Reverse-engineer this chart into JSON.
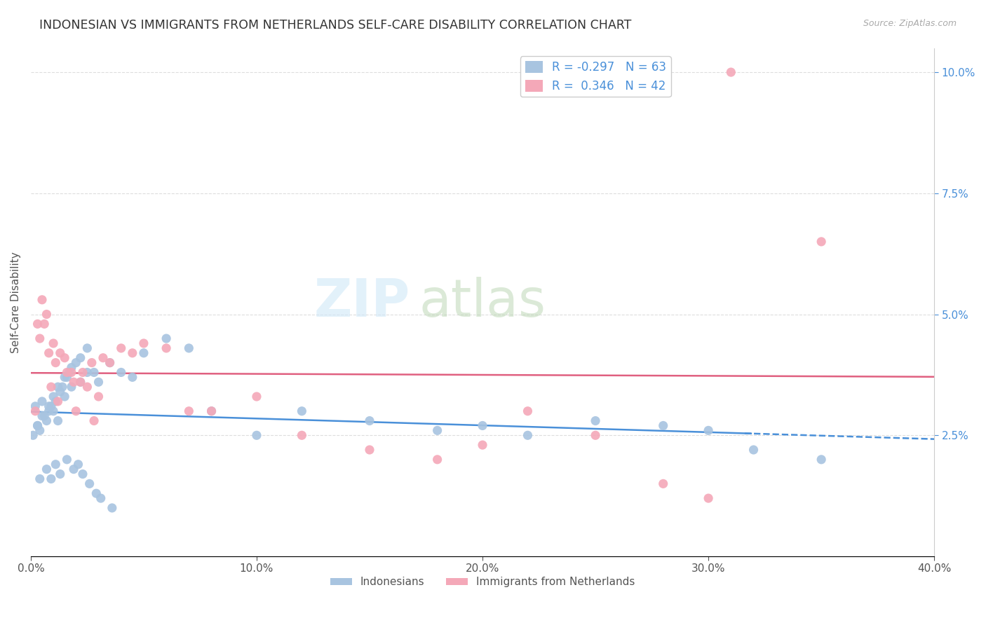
{
  "title": "INDONESIAN VS IMMIGRANTS FROM NETHERLANDS SELF-CARE DISABILITY CORRELATION CHART",
  "source": "Source: ZipAtlas.com",
  "ylabel": "Self-Care Disability",
  "xlim": [
    0.0,
    0.4
  ],
  "ylim": [
    0.0,
    0.105
  ],
  "xticks": [
    0.0,
    0.1,
    0.2,
    0.3,
    0.4
  ],
  "xticklabels": [
    "0.0%",
    "10.0%",
    "20.0%",
    "30.0%",
    "40.0%"
  ],
  "yticks_right": [
    0.025,
    0.05,
    0.075,
    0.1
  ],
  "yticklabels_right": [
    "2.5%",
    "5.0%",
    "7.5%",
    "10.0%"
  ],
  "legend_r_blue": "-0.297",
  "legend_n_blue": "63",
  "legend_r_pink": "0.346",
  "legend_n_pink": "42",
  "blue_color": "#a8c4e0",
  "pink_color": "#f4a8b8",
  "blue_line_color": "#4a90d9",
  "pink_line_color": "#e06080",
  "watermark_zip": "ZIP",
  "watermark_atlas": "atlas",
  "indonesian_x": [
    0.008,
    0.012,
    0.005,
    0.003,
    0.002,
    0.015,
    0.018,
    0.022,
    0.025,
    0.006,
    0.004,
    0.009,
    0.01,
    0.007,
    0.013,
    0.016,
    0.02,
    0.011,
    0.014,
    0.017,
    0.001,
    0.003,
    0.005,
    0.008,
    0.01,
    0.012,
    0.015,
    0.018,
    0.022,
    0.025,
    0.028,
    0.03,
    0.035,
    0.04,
    0.045,
    0.05,
    0.06,
    0.07,
    0.08,
    0.1,
    0.12,
    0.15,
    0.18,
    0.2,
    0.22,
    0.25,
    0.28,
    0.3,
    0.32,
    0.35,
    0.004,
    0.007,
    0.009,
    0.011,
    0.013,
    0.016,
    0.019,
    0.021,
    0.023,
    0.026,
    0.029,
    0.031,
    0.036
  ],
  "indonesian_y": [
    0.03,
    0.028,
    0.032,
    0.027,
    0.031,
    0.033,
    0.035,
    0.036,
    0.038,
    0.029,
    0.026,
    0.031,
    0.03,
    0.028,
    0.034,
    0.037,
    0.04,
    0.032,
    0.035,
    0.038,
    0.025,
    0.027,
    0.029,
    0.031,
    0.033,
    0.035,
    0.037,
    0.039,
    0.041,
    0.043,
    0.038,
    0.036,
    0.04,
    0.038,
    0.037,
    0.042,
    0.045,
    0.043,
    0.03,
    0.025,
    0.03,
    0.028,
    0.026,
    0.027,
    0.025,
    0.028,
    0.027,
    0.026,
    0.022,
    0.02,
    0.016,
    0.018,
    0.016,
    0.019,
    0.017,
    0.02,
    0.018,
    0.019,
    0.017,
    0.015,
    0.013,
    0.012,
    0.01
  ],
  "netherlands_x": [
    0.002,
    0.004,
    0.006,
    0.008,
    0.01,
    0.012,
    0.015,
    0.018,
    0.02,
    0.022,
    0.025,
    0.028,
    0.03,
    0.035,
    0.04,
    0.05,
    0.06,
    0.07,
    0.08,
    0.1,
    0.12,
    0.15,
    0.18,
    0.2,
    0.22,
    0.25,
    0.28,
    0.3,
    0.003,
    0.005,
    0.007,
    0.009,
    0.011,
    0.013,
    0.016,
    0.019,
    0.023,
    0.027,
    0.032,
    0.045,
    0.35,
    0.31
  ],
  "netherlands_y": [
    0.03,
    0.045,
    0.048,
    0.042,
    0.044,
    0.032,
    0.041,
    0.038,
    0.03,
    0.036,
    0.035,
    0.028,
    0.033,
    0.04,
    0.043,
    0.044,
    0.043,
    0.03,
    0.03,
    0.033,
    0.025,
    0.022,
    0.02,
    0.023,
    0.03,
    0.025,
    0.015,
    0.012,
    0.048,
    0.053,
    0.05,
    0.035,
    0.04,
    0.042,
    0.038,
    0.036,
    0.038,
    0.04,
    0.041,
    0.042,
    0.065,
    0.1
  ]
}
